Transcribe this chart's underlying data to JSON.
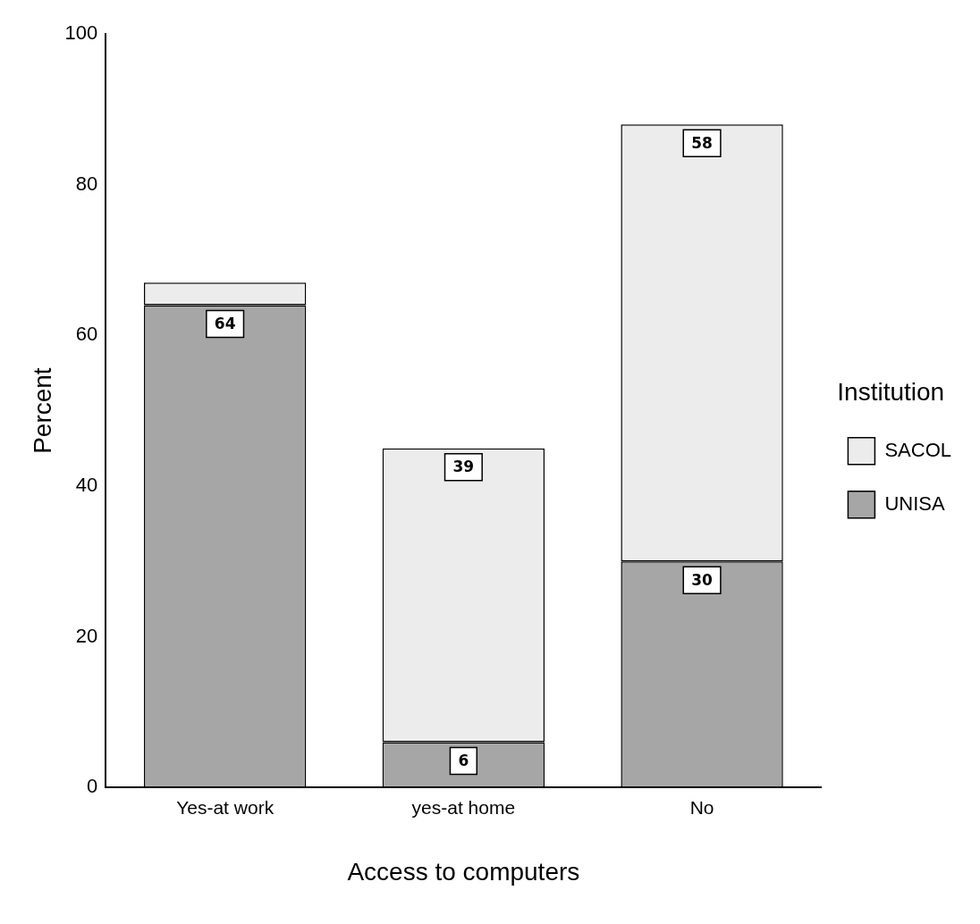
{
  "chart_data": {
    "type": "bar",
    "stacked": true,
    "xlabel": "Access to computers",
    "ylabel": "Percent",
    "legend_title": "Institution",
    "legend": "right",
    "categories": [
      "Yes-at work",
      "yes-at home",
      "No"
    ],
    "series": [
      {
        "name": "UNISA",
        "color": "#a6a6a6",
        "values": [
          64,
          6,
          30
        ],
        "value_labels": [
          "64",
          "6",
          "30"
        ]
      },
      {
        "name": "SACOL",
        "color": "#ececec",
        "values": [
          3,
          39,
          58
        ],
        "value_labels": [
          null,
          "39",
          "58"
        ]
      }
    ],
    "ylim": [
      0,
      100
    ],
    "yticks": [
      0,
      20,
      40,
      60,
      80,
      100
    ],
    "grid": false
  }
}
